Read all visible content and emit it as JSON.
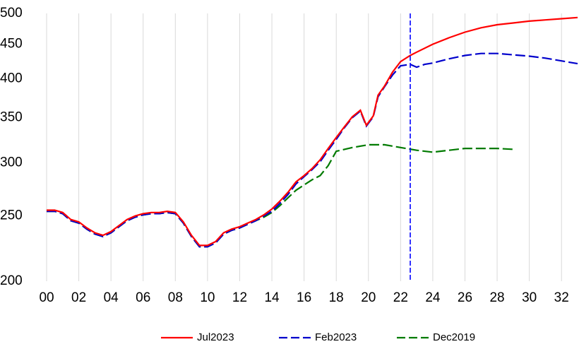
{
  "chart_data": {
    "type": "line",
    "yscale": "log",
    "grid": "x",
    "xlim": [
      1999.56,
      2033
    ],
    "ylim": [
      200,
      500
    ],
    "yticks": [
      200,
      250,
      300,
      350,
      400,
      450,
      500
    ],
    "xticks": [
      {
        "value": 2000,
        "label": "00"
      },
      {
        "value": 2002,
        "label": "02"
      },
      {
        "value": 2004,
        "label": "04"
      },
      {
        "value": 2006,
        "label": "06"
      },
      {
        "value": 2008,
        "label": "08"
      },
      {
        "value": 2010,
        "label": "10"
      },
      {
        "value": 2012,
        "label": "12"
      },
      {
        "value": 2014,
        "label": "14"
      },
      {
        "value": 2016,
        "label": "16"
      },
      {
        "value": 2018,
        "label": "18"
      },
      {
        "value": 2020,
        "label": "20"
      },
      {
        "value": 2022,
        "label": "22"
      },
      {
        "value": 2024,
        "label": "24"
      },
      {
        "value": 2026,
        "label": "26"
      },
      {
        "value": 2028,
        "label": "28"
      },
      {
        "value": 2030,
        "label": "30"
      },
      {
        "value": 2032,
        "label": "32"
      }
    ],
    "vline": {
      "x": 2022.6,
      "color": "#0000ff"
    },
    "series": [
      {
        "name": "Jul2023",
        "color": "#ff0000",
        "style": "solid",
        "x": [
          2000,
          2000.5,
          2001,
          2001.5,
          2002,
          2002.5,
          2003,
          2003.5,
          2004,
          2004.5,
          2005,
          2005.5,
          2006,
          2006.5,
          2007,
          2007.5,
          2008,
          2008.5,
          2009,
          2009.5,
          2010,
          2010.5,
          2011,
          2011.5,
          2012,
          2012.5,
          2013,
          2013.5,
          2014,
          2014.5,
          2015,
          2015.5,
          2016,
          2016.5,
          2017,
          2017.5,
          2018,
          2018.5,
          2019,
          2019.5,
          2019.87,
          2020.3,
          2020.6,
          2021,
          2021.5,
          2022,
          2022.6,
          2023,
          2024,
          2025,
          2026,
          2027,
          2028,
          2029,
          2030,
          2031,
          2032,
          2033
        ],
        "values": [
          255,
          255,
          253,
          247,
          245,
          240,
          236,
          234,
          237,
          242,
          247,
          250,
          252,
          253,
          253,
          254,
          253,
          245,
          234,
          226,
          226,
          229,
          236,
          239,
          241,
          244,
          247,
          251,
          256,
          263,
          271,
          281,
          287,
          294,
          303,
          315,
          327,
          339,
          351,
          359,
          341,
          352,
          378,
          390,
          409,
          424,
          433,
          438,
          450,
          460,
          469,
          476,
          481,
          484,
          487,
          489,
          491,
          493
        ]
      },
      {
        "name": "Feb2023",
        "color": "#0000cc",
        "style": "dashed",
        "x": [
          2000,
          2000.5,
          2001,
          2001.5,
          2002,
          2002.5,
          2003,
          2003.5,
          2004,
          2004.5,
          2005,
          2005.5,
          2006,
          2006.5,
          2007,
          2007.5,
          2008,
          2008.5,
          2009,
          2009.5,
          2010,
          2010.5,
          2011,
          2011.5,
          2012,
          2012.5,
          2013,
          2013.5,
          2014,
          2014.5,
          2015,
          2015.5,
          2016,
          2016.5,
          2017,
          2017.5,
          2018,
          2018.5,
          2019,
          2019.5,
          2019.87,
          2020.3,
          2020.6,
          2021,
          2021.5,
          2022,
          2022.6,
          2023,
          2023.5,
          2024,
          2025,
          2026,
          2027,
          2028,
          2029,
          2030,
          2031,
          2032,
          2033
        ],
        "values": [
          254,
          254,
          252,
          246,
          244,
          239,
          235,
          233,
          236,
          241,
          246,
          249,
          251,
          252,
          252,
          253,
          252,
          244,
          233,
          225,
          225,
          228,
          235,
          238,
          240,
          243,
          246,
          250,
          254,
          261,
          269,
          279,
          286,
          293,
          301,
          313,
          325,
          338,
          350,
          358,
          340,
          351,
          376,
          389,
          405,
          418,
          420,
          416,
          420,
          422,
          428,
          433,
          436,
          436,
          434,
          432,
          429,
          425,
          421
        ]
      },
      {
        "name": "Dec2019",
        "color": "#007a00",
        "style": "dashed",
        "x": [
          2000,
          2000.5,
          2001,
          2001.5,
          2002,
          2002.5,
          2003,
          2003.5,
          2004,
          2004.5,
          2005,
          2005.5,
          2006,
          2006.5,
          2007,
          2007.5,
          2008,
          2008.5,
          2009,
          2009.5,
          2010,
          2010.5,
          2011,
          2011.5,
          2012,
          2012.5,
          2013,
          2013.5,
          2014,
          2014.5,
          2015,
          2015.5,
          2016,
          2016.5,
          2017,
          2017.5,
          2018,
          2019,
          2020,
          2021,
          2022,
          2023,
          2024,
          2025,
          2026,
          2027,
          2028,
          2029
        ],
        "values": [
          254,
          254,
          252,
          246,
          244,
          239,
          235,
          233,
          236,
          241,
          246,
          249,
          251,
          252,
          252,
          253,
          252,
          244,
          233,
          225,
          225,
          228,
          235,
          238,
          240,
          243,
          246,
          249,
          253,
          259,
          266,
          273,
          278,
          283,
          287,
          297,
          312,
          316,
          319,
          319,
          316,
          313,
          311,
          313,
          315,
          315,
          315,
          314
        ]
      }
    ]
  }
}
